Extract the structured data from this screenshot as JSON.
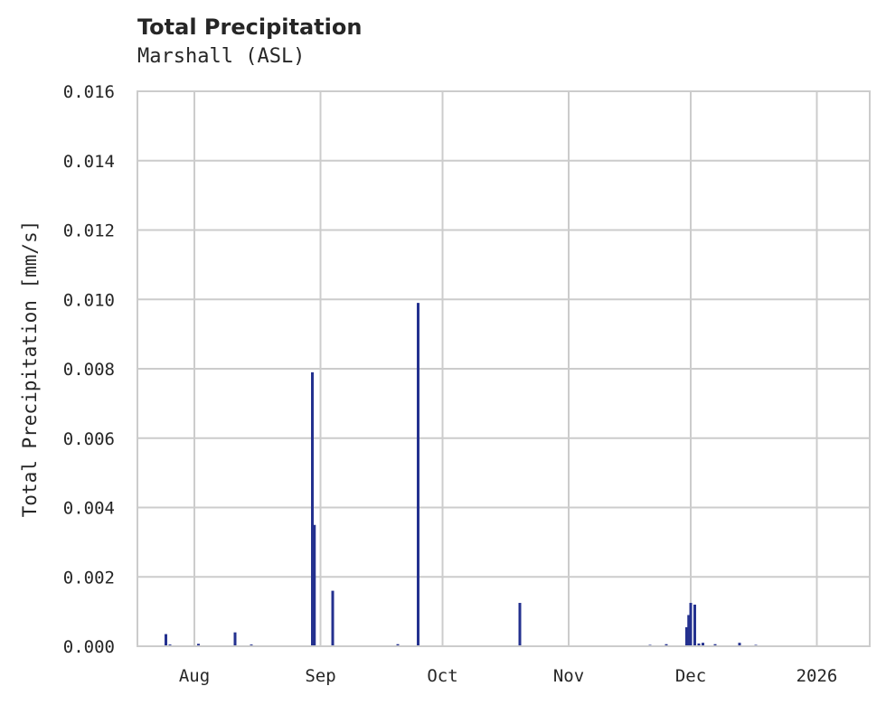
{
  "chart_data": {
    "type": "line",
    "title": "Total Precipitation",
    "subtitle": "Marshall (ASL)",
    "xlabel": "",
    "ylabel": "Total Precipitation [mm/s]",
    "ylim": [
      0,
      0.016
    ],
    "xlim": [
      "2025-07-18",
      "2026-01-14"
    ],
    "grid": true,
    "legend": null,
    "series_color": "#24318f",
    "x_ticks": [
      {
        "label": "Aug",
        "date": "2025-08-01"
      },
      {
        "label": "Sep",
        "date": "2025-09-01"
      },
      {
        "label": "Oct",
        "date": "2025-10-01"
      },
      {
        "label": "Nov",
        "date": "2025-11-01"
      },
      {
        "label": "Dec",
        "date": "2025-12-01"
      },
      {
        "label": "2026",
        "date": "2026-01-01"
      }
    ],
    "y_ticks": [
      "0.000",
      "0.002",
      "0.004",
      "0.006",
      "0.008",
      "0.010",
      "0.012",
      "0.014",
      "0.016"
    ],
    "series": [
      {
        "name": "Total Precipitation",
        "points": [
          {
            "date": "2025-07-25",
            "value": 0.00035
          },
          {
            "date": "2025-07-26",
            "value": 5e-05
          },
          {
            "date": "2025-08-02",
            "value": 7e-05
          },
          {
            "date": "2025-08-11",
            "value": 0.0004
          },
          {
            "date": "2025-08-15",
            "value": 5e-05
          },
          {
            "date": "2025-08-30",
            "value": 0.0079
          },
          {
            "date": "2025-08-30T12:00",
            "value": 0.0035
          },
          {
            "date": "2025-09-04",
            "value": 0.0016
          },
          {
            "date": "2025-09-20",
            "value": 6e-05
          },
          {
            "date": "2025-09-25",
            "value": 0.0099
          },
          {
            "date": "2025-10-20",
            "value": 0.00125
          },
          {
            "date": "2025-11-21",
            "value": 4e-05
          },
          {
            "date": "2025-11-25",
            "value": 6e-05
          },
          {
            "date": "2025-11-30",
            "value": 0.00055
          },
          {
            "date": "2025-11-30T12:00",
            "value": 0.0009
          },
          {
            "date": "2025-12-01",
            "value": 0.00125
          },
          {
            "date": "2025-12-02",
            "value": 0.0012
          },
          {
            "date": "2025-12-03",
            "value": 8e-05
          },
          {
            "date": "2025-12-04",
            "value": 0.0001
          },
          {
            "date": "2025-12-07",
            "value": 6e-05
          },
          {
            "date": "2025-12-13",
            "value": 0.0001
          },
          {
            "date": "2025-12-17",
            "value": 4e-05
          }
        ]
      }
    ]
  }
}
